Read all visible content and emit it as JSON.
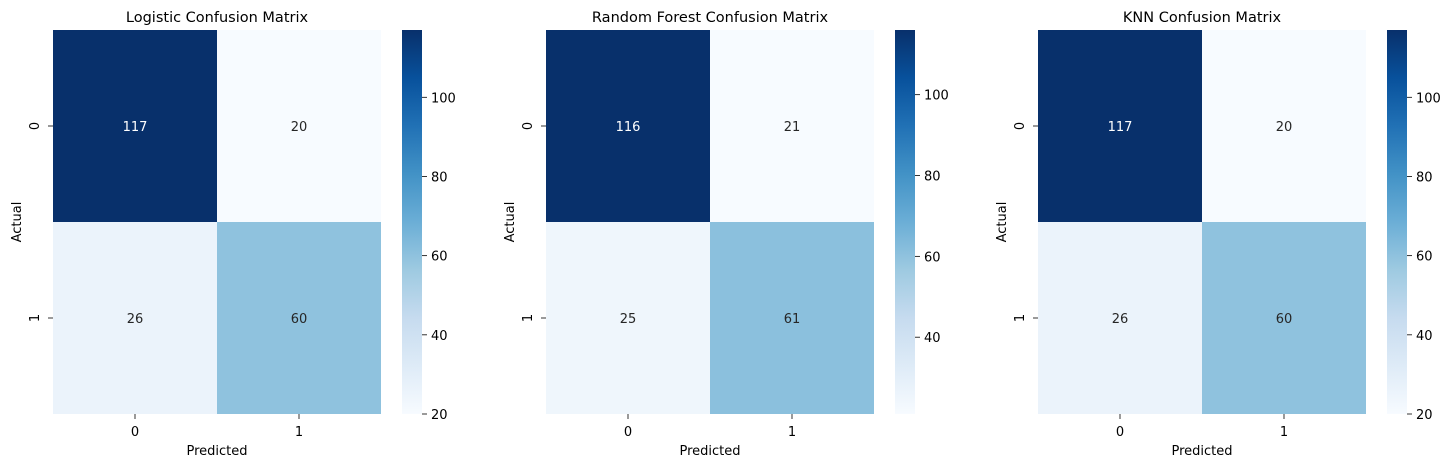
{
  "chart_data": [
    {
      "type": "heatmap",
      "title": "Logistic Confusion Matrix",
      "xlabel": "Predicted",
      "ylabel": "Actual",
      "x_categories": [
        "0",
        "1"
      ],
      "y_categories": [
        "0",
        "1"
      ],
      "values": [
        [
          117,
          20
        ],
        [
          26,
          60
        ]
      ],
      "colormap": "Blues",
      "colorbar": {
        "vmin": 20,
        "vmax": 117,
        "ticks": [
          20,
          40,
          60,
          80,
          100
        ]
      }
    },
    {
      "type": "heatmap",
      "title": "Random Forest Confusion Matrix",
      "xlabel": "Predicted",
      "ylabel": "Actual",
      "x_categories": [
        "0",
        "1"
      ],
      "y_categories": [
        "0",
        "1"
      ],
      "values": [
        [
          116,
          21
        ],
        [
          25,
          61
        ]
      ],
      "colormap": "Blues",
      "colorbar": {
        "vmin": 21,
        "vmax": 116,
        "ticks": [
          40,
          60,
          80,
          100
        ]
      }
    },
    {
      "type": "heatmap",
      "title": "KNN Confusion Matrix",
      "xlabel": "Predicted",
      "ylabel": "Actual",
      "x_categories": [
        "0",
        "1"
      ],
      "y_categories": [
        "0",
        "1"
      ],
      "values": [
        [
          117,
          20
        ],
        [
          26,
          60
        ]
      ],
      "colormap": "Blues",
      "colorbar": {
        "vmin": 20,
        "vmax": 117,
        "ticks": [
          20,
          40,
          60,
          80,
          100
        ]
      }
    }
  ]
}
